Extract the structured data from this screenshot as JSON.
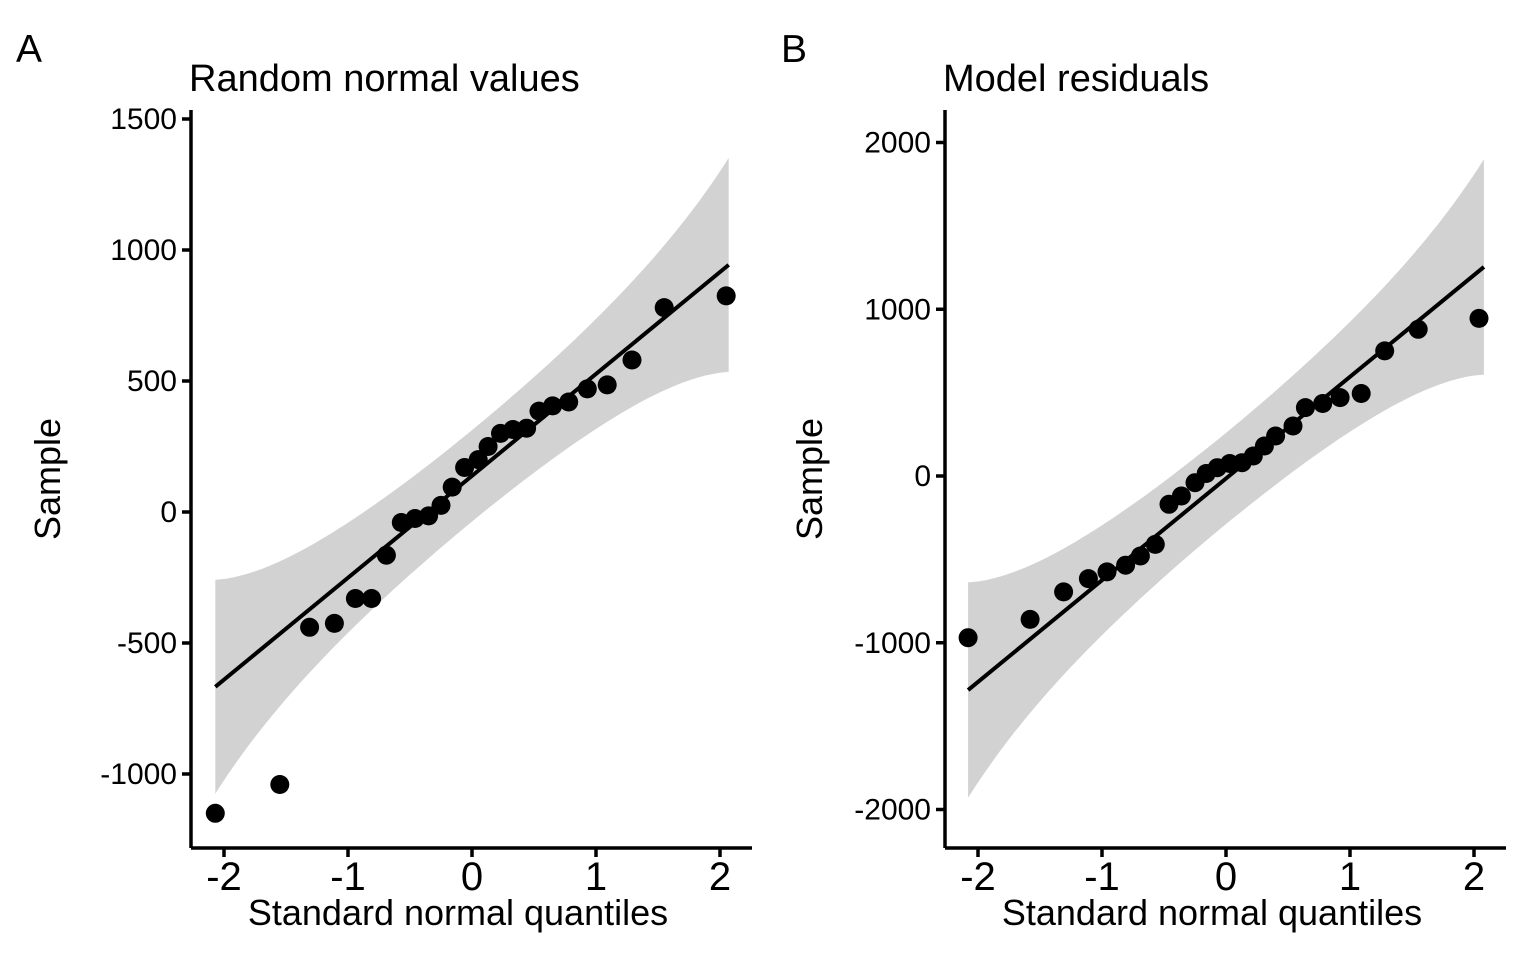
{
  "figure": {
    "background": "#ffffff",
    "point_color": "#000000",
    "line_color": "#000000",
    "band_color": "#d2d2d2",
    "axis_color": "#000000"
  },
  "chart_data": [
    {
      "type": "scatter",
      "tag": "A",
      "title": "Random normal values",
      "xlabel": "Standard normal quantiles",
      "ylabel": "Sample",
      "x_ticks": [
        -2,
        -1,
        0,
        1,
        2
      ],
      "y_ticks": [
        1500,
        1000,
        500,
        0,
        -500,
        -1000
      ],
      "xlim": [
        -2.27,
        2.27
      ],
      "ylim": [
        -1280,
        1530
      ],
      "grid": false,
      "legend": "none",
      "points": [
        [
          -2.07,
          -1150
        ],
        [
          -1.55,
          -1040
        ],
        [
          -1.31,
          -440
        ],
        [
          -1.11,
          -425
        ],
        [
          -0.94,
          -330
        ],
        [
          -0.81,
          -330
        ],
        [
          -0.69,
          -165
        ],
        [
          -0.57,
          -40
        ],
        [
          -0.46,
          -25
        ],
        [
          -0.35,
          -15
        ],
        [
          -0.25,
          25
        ],
        [
          -0.16,
          95
        ],
        [
          -0.06,
          170
        ],
        [
          0.05,
          200
        ],
        [
          0.13,
          250
        ],
        [
          0.23,
          300
        ],
        [
          0.33,
          315
        ],
        [
          0.44,
          320
        ],
        [
          0.54,
          385
        ],
        [
          0.65,
          405
        ],
        [
          0.78,
          420
        ],
        [
          0.93,
          470
        ],
        [
          1.09,
          485
        ],
        [
          1.29,
          580
        ],
        [
          1.55,
          780
        ],
        [
          2.05,
          825
        ]
      ],
      "ref_line": {
        "intercept": 138,
        "slope": 389,
        "q_start": -2.07,
        "q_end": 2.07
      },
      "conf_band": {
        "method": "pointwise-normal",
        "n": 30,
        "z": 1.96
      }
    },
    {
      "type": "scatter",
      "tag": "B",
      "title": "Model residuals",
      "xlabel": "Standard normal quantiles",
      "ylabel": "Sample",
      "x_ticks": [
        -2,
        -1,
        0,
        1,
        2
      ],
      "y_ticks": [
        2000,
        1000,
        0,
        -1000,
        -2000
      ],
      "xlim": [
        -2.27,
        2.27
      ],
      "ylim": [
        -2230,
        2195
      ],
      "grid": false,
      "legend": "none",
      "points": [
        [
          -2.08,
          -970
        ],
        [
          -1.58,
          -860
        ],
        [
          -1.31,
          -695
        ],
        [
          -1.11,
          -615
        ],
        [
          -0.96,
          -575
        ],
        [
          -0.81,
          -535
        ],
        [
          -0.69,
          -480
        ],
        [
          -0.57,
          -410
        ],
        [
          -0.46,
          -170
        ],
        [
          -0.36,
          -120
        ],
        [
          -0.25,
          -40
        ],
        [
          -0.16,
          15
        ],
        [
          -0.07,
          50
        ],
        [
          0.03,
          75
        ],
        [
          0.13,
          80
        ],
        [
          0.22,
          120
        ],
        [
          0.31,
          180
        ],
        [
          0.4,
          240
        ],
        [
          0.54,
          300
        ],
        [
          0.64,
          410
        ],
        [
          0.78,
          435
        ],
        [
          0.92,
          470
        ],
        [
          1.09,
          495
        ],
        [
          1.28,
          750
        ],
        [
          1.55,
          880
        ],
        [
          2.04,
          945
        ]
      ],
      "ref_line": {
        "intercept": -15,
        "slope": 610,
        "q_start": -2.08,
        "q_end": 2.08
      },
      "conf_band": {
        "method": "pointwise-normal",
        "n": 30,
        "z": 1.96
      }
    }
  ]
}
